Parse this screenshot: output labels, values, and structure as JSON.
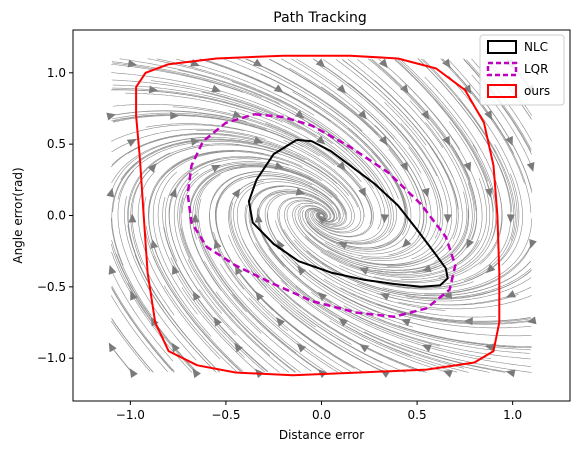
{
  "chart_data": {
    "type": "line",
    "title": "Path Tracking",
    "xlabel": "Distance error",
    "ylabel": "Angle error(rad)",
    "xlim": [
      -1.3,
      1.3
    ],
    "ylim": [
      -1.3,
      1.3
    ],
    "xticks": [
      "−1.0",
      "−0.5",
      "0.0",
      "0.5",
      "1.0"
    ],
    "xtick_values": [
      -1.0,
      -0.5,
      0.0,
      0.5,
      1.0
    ],
    "yticks": [
      "−1.0",
      "−0.5",
      "0.0",
      "0.5",
      "1.0"
    ],
    "ytick_values": [
      -1.0,
      -0.5,
      0.0,
      0.5,
      1.0
    ],
    "grid": false,
    "legend_position": "top-right",
    "background": "streamplot of vector field (gray)",
    "series": [
      {
        "name": "NLC",
        "color": "#000000",
        "style": "solid",
        "points": [
          [
            -0.13,
            0.53
          ],
          [
            -0.05,
            0.52
          ],
          [
            0.05,
            0.45
          ],
          [
            0.15,
            0.35
          ],
          [
            0.28,
            0.22
          ],
          [
            0.4,
            0.07
          ],
          [
            0.5,
            -0.1
          ],
          [
            0.59,
            -0.26
          ],
          [
            0.65,
            -0.37
          ],
          [
            0.66,
            -0.44
          ],
          [
            0.62,
            -0.49
          ],
          [
            0.52,
            -0.5
          ],
          [
            0.38,
            -0.48
          ],
          [
            0.22,
            -0.45
          ],
          [
            0.05,
            -0.4
          ],
          [
            -0.12,
            -0.32
          ],
          [
            -0.25,
            -0.2
          ],
          [
            -0.36,
            -0.05
          ],
          [
            -0.38,
            0.1
          ],
          [
            -0.34,
            0.25
          ],
          [
            -0.25,
            0.43
          ],
          [
            -0.13,
            0.53
          ]
        ]
      },
      {
        "name": "LQR",
        "color": "#bf00bf",
        "style": "dashed",
        "points": [
          [
            -0.35,
            0.71
          ],
          [
            -0.2,
            0.69
          ],
          [
            -0.05,
            0.63
          ],
          [
            0.15,
            0.48
          ],
          [
            0.35,
            0.3
          ],
          [
            0.52,
            0.08
          ],
          [
            0.65,
            -0.15
          ],
          [
            0.7,
            -0.35
          ],
          [
            0.67,
            -0.52
          ],
          [
            0.55,
            -0.65
          ],
          [
            0.38,
            -0.71
          ],
          [
            0.18,
            -0.68
          ],
          [
            -0.05,
            -0.6
          ],
          [
            -0.25,
            -0.48
          ],
          [
            -0.45,
            -0.35
          ],
          [
            -0.6,
            -0.22
          ],
          [
            -0.68,
            -0.05
          ],
          [
            -0.7,
            0.15
          ],
          [
            -0.68,
            0.35
          ],
          [
            -0.62,
            0.52
          ],
          [
            -0.5,
            0.65
          ],
          [
            -0.35,
            0.71
          ]
        ]
      },
      {
        "name": "ours",
        "color": "#ff0000",
        "style": "solid",
        "points": [
          [
            -0.8,
            1.06
          ],
          [
            -0.55,
            1.1
          ],
          [
            -0.2,
            1.12
          ],
          [
            0.15,
            1.12
          ],
          [
            0.4,
            1.1
          ],
          [
            0.6,
            1.03
          ],
          [
            0.75,
            0.88
          ],
          [
            0.85,
            0.65
          ],
          [
            0.9,
            0.35
          ],
          [
            0.92,
            0.0
          ],
          [
            0.93,
            -0.4
          ],
          [
            0.93,
            -0.75
          ],
          [
            0.9,
            -0.95
          ],
          [
            0.8,
            -1.03
          ],
          [
            0.55,
            -1.08
          ],
          [
            0.2,
            -1.1
          ],
          [
            -0.15,
            -1.12
          ],
          [
            -0.45,
            -1.1
          ],
          [
            -0.65,
            -1.05
          ],
          [
            -0.8,
            -0.95
          ],
          [
            -0.87,
            -0.75
          ],
          [
            -0.91,
            -0.4
          ],
          [
            -0.93,
            0.0
          ],
          [
            -0.95,
            0.4
          ],
          [
            -0.97,
            0.7
          ],
          [
            -0.97,
            0.9
          ],
          [
            -0.92,
            1.0
          ],
          [
            -0.8,
            1.06
          ]
        ]
      }
    ]
  }
}
